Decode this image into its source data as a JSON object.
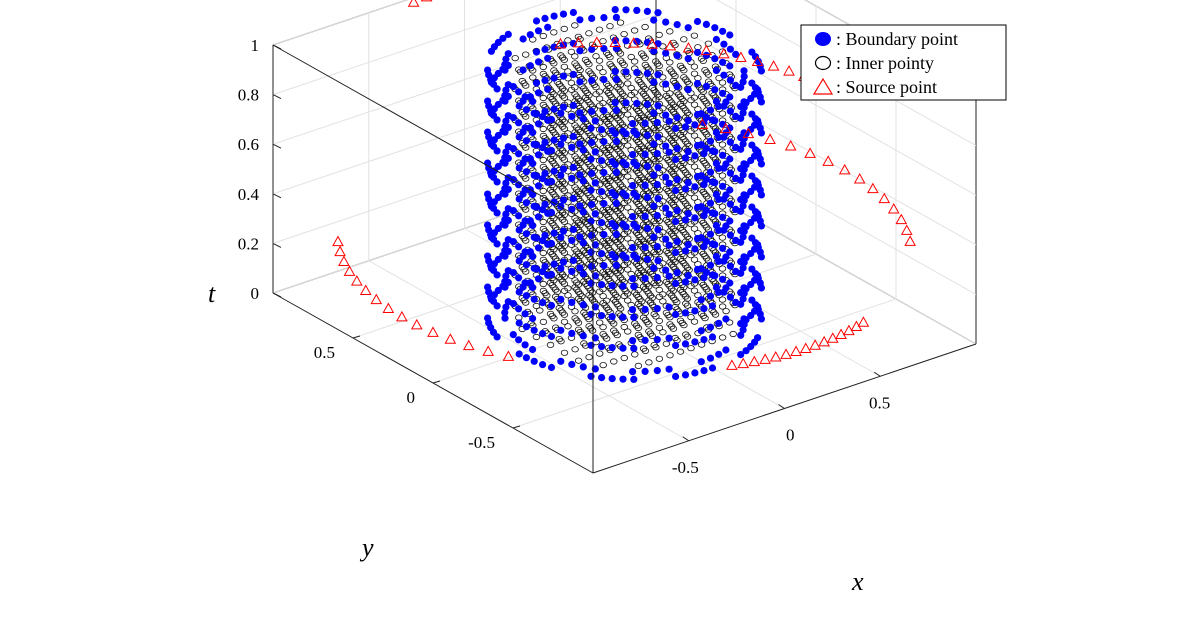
{
  "chart_data": {
    "type": "scatter",
    "projection": "3d",
    "title": "",
    "xlabel": "x",
    "ylabel": "y",
    "zlabel": "t",
    "xlim": [
      -1,
      1
    ],
    "ylim": [
      -1,
      1
    ],
    "zlim": [
      0,
      1
    ],
    "grid": true,
    "legend_position": "top-right",
    "x_ticks": [
      {
        "value": -0.5,
        "label": "-0.5"
      },
      {
        "value": 0,
        "label": "0"
      },
      {
        "value": 0.5,
        "label": "0.5"
      }
    ],
    "y_ticks": [
      {
        "value": -0.5,
        "label": "-0.5"
      },
      {
        "value": 0,
        "label": "0"
      },
      {
        "value": 0.5,
        "label": "0.5"
      }
    ],
    "z_ticks": [
      {
        "value": 0,
        "label": "0"
      },
      {
        "value": 0.2,
        "label": "0.2"
      },
      {
        "value": 0.4,
        "label": "0.4"
      },
      {
        "value": 0.6,
        "label": "0.6"
      },
      {
        "value": 0.8,
        "label": "0.8"
      },
      {
        "value": 1,
        "label": "1"
      }
    ],
    "series": [
      {
        "name": "Boundary point",
        "legend_label": ": Boundary point",
        "marker": "filled-circle",
        "color": "#0000ff",
        "gear_teeth": 10,
        "r_outer": 0.55,
        "r_inner": 0.48,
        "t_levels": [
          0.0,
          0.125,
          0.25,
          0.375,
          0.5,
          0.625,
          0.75,
          0.875,
          1.0
        ]
      },
      {
        "name": "Inner pointy",
        "legend_label": ": Inner pointy",
        "marker": "open-circle",
        "color": "#000000",
        "grid_step": 0.055,
        "t_levels": [
          0.0,
          0.0625,
          0.125,
          0.1875,
          0.25,
          0.3125,
          0.375,
          0.4375,
          0.5,
          0.5625,
          0.625,
          0.6875,
          0.75,
          0.8125,
          0.875,
          0.9375,
          1.0
        ]
      },
      {
        "name": "Source point",
        "legend_label": ": Source point",
        "marker": "open-triangle",
        "color": "#ff0000",
        "radius": 1.15,
        "arcs": [
          {
            "t": 0.3,
            "angle_from": -0.6,
            "angle_to": 0.6
          },
          {
            "t": 0.3,
            "angle_from": 2.5,
            "angle_to": 3.6
          },
          {
            "t": 0.6,
            "angle_from": 0.2,
            "angle_to": 1.1
          },
          {
            "t": 0.9,
            "angle_from": 0.8,
            "angle_to": 1.7
          },
          {
            "t": 0.3,
            "angle_from": 4.4,
            "angle_to": 5.0
          }
        ]
      }
    ]
  }
}
